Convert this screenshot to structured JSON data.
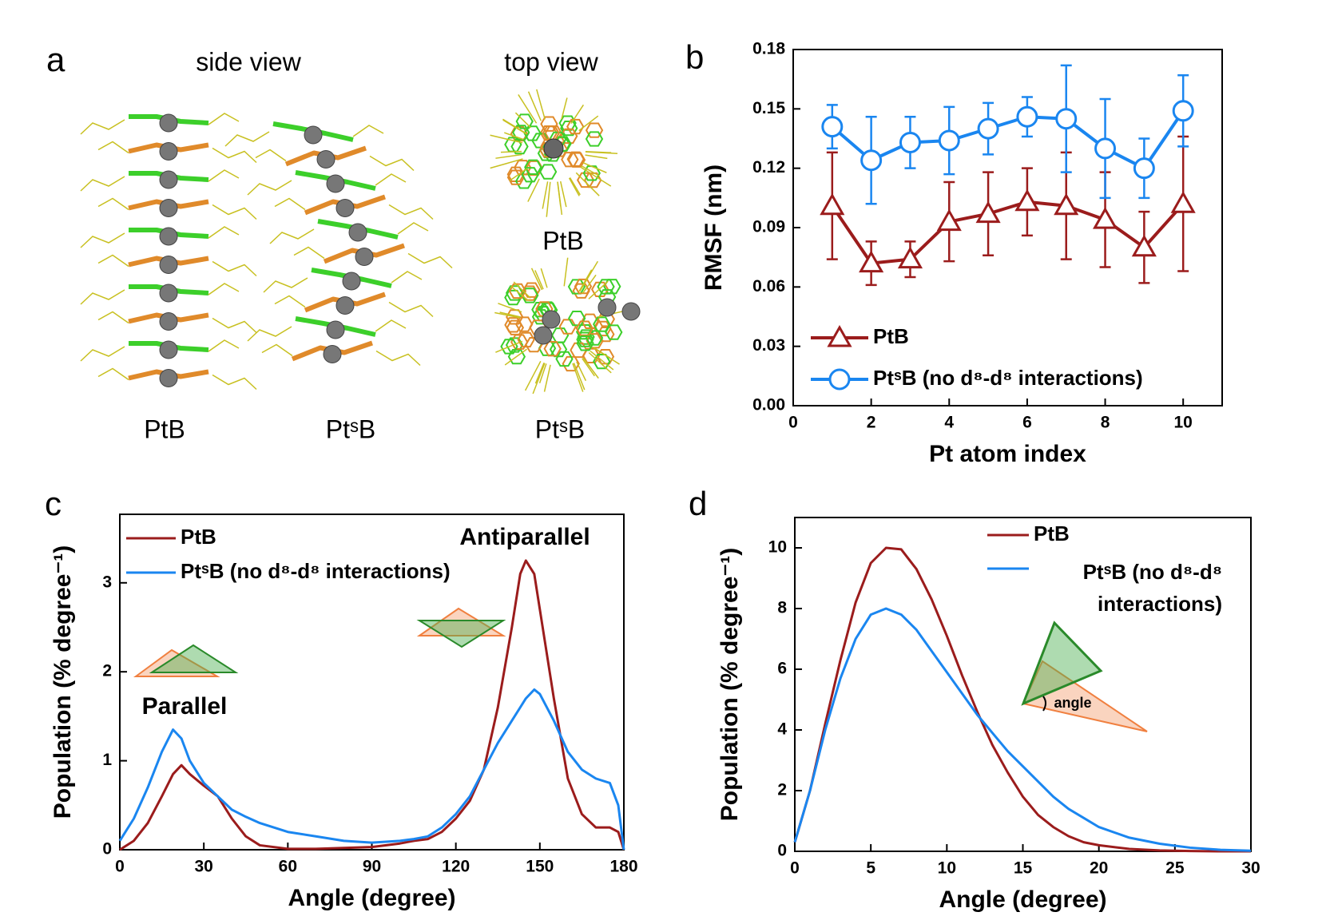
{
  "panel_a": {
    "panel_label": "a",
    "side_view": "side view",
    "top_view": "top view",
    "side_labels": [
      "PtB",
      "PtˢB"
    ],
    "top_labels": [
      "PtB",
      "PtˢB"
    ]
  },
  "chart_data": [
    {
      "type": "line",
      "panel_label": "b",
      "x_label": "Pt atom index",
      "y_label": "RMSF (nm)",
      "x": [
        1,
        2,
        3,
        4,
        5,
        6,
        7,
        8,
        9,
        10
      ],
      "series": [
        {
          "name": "PtB",
          "color": "#9b1c1c",
          "marker": "triangle",
          "values": [
            0.101,
            0.072,
            0.074,
            0.093,
            0.097,
            0.103,
            0.101,
            0.094,
            0.08,
            0.102
          ],
          "errors": [
            0.027,
            0.011,
            0.009,
            0.02,
            0.021,
            0.017,
            0.027,
            0.024,
            0.018,
            0.034
          ]
        },
        {
          "name": "PtˢB (no d⁸-d⁸ interactions)",
          "color": "#1a86f0",
          "marker": "circle",
          "values": [
            0.141,
            0.124,
            0.133,
            0.134,
            0.14,
            0.146,
            0.145,
            0.13,
            0.12,
            0.149
          ],
          "errors": [
            0.011,
            0.022,
            0.013,
            0.017,
            0.013,
            0.01,
            0.027,
            0.025,
            0.015,
            0.018
          ]
        }
      ],
      "xlim": [
        0,
        11
      ],
      "xticks": [
        0,
        2,
        4,
        6,
        8,
        10
      ],
      "ylim": [
        0,
        0.18
      ],
      "yticks": [
        {
          "value": 0,
          "label": "0.00"
        },
        0.03,
        0.06,
        0.09,
        0.12,
        0.15,
        0.18
      ],
      "legend": "lower left"
    },
    {
      "type": "line",
      "panel_label": "c",
      "x_label": "Angle (degree)",
      "y_label": "Population (% degree⁻¹)",
      "annotations": [
        "Parallel",
        "Antiparallel"
      ],
      "x": [
        0,
        5,
        10,
        15,
        19,
        22,
        25,
        30,
        35,
        40,
        45,
        50,
        60,
        70,
        80,
        90,
        100,
        105,
        110,
        115,
        120,
        125,
        130,
        135,
        140,
        143,
        145,
        148,
        150,
        155,
        160,
        165,
        170,
        175,
        178,
        180
      ],
      "series": [
        {
          "name": "PtB",
          "color": "#9b1c1c",
          "values": [
            0,
            0.1,
            0.3,
            0.6,
            0.85,
            0.95,
            0.85,
            0.72,
            0.6,
            0.35,
            0.15,
            0.05,
            0.01,
            0.01,
            0.02,
            0.03,
            0.07,
            0.1,
            0.12,
            0.2,
            0.35,
            0.55,
            0.9,
            1.6,
            2.5,
            3.1,
            3.25,
            3.1,
            2.7,
            1.7,
            0.8,
            0.4,
            0.25,
            0.25,
            0.2,
            0
          ]
        },
        {
          "name": "PtˢB (no d⁸-d⁸ interactions)",
          "color": "#1a86f0",
          "values": [
            0.1,
            0.35,
            0.7,
            1.1,
            1.35,
            1.25,
            1.0,
            0.75,
            0.6,
            0.45,
            0.37,
            0.3,
            0.2,
            0.15,
            0.1,
            0.08,
            0.1,
            0.12,
            0.15,
            0.25,
            0.4,
            0.6,
            0.9,
            1.2,
            1.45,
            1.6,
            1.7,
            1.8,
            1.75,
            1.45,
            1.1,
            0.9,
            0.8,
            0.75,
            0.5,
            0
          ]
        }
      ],
      "xlim": [
        0,
        180
      ],
      "xticks": [
        0,
        30,
        60,
        90,
        120,
        150,
        180
      ],
      "ylim": [
        0,
        3.77
      ],
      "yticks": [
        0,
        1,
        2,
        3
      ],
      "legend": "upper left"
    },
    {
      "type": "line",
      "panel_label": "d",
      "x_label": "Angle (degree)",
      "y_label": "Population (% degree⁻¹)",
      "annotations": [
        "angle"
      ],
      "x": [
        0,
        1,
        2,
        3,
        4,
        5,
        6,
        7,
        8,
        9,
        10,
        11,
        12,
        13,
        14,
        15,
        16,
        17,
        18,
        19,
        20,
        22,
        24,
        26,
        28,
        30
      ],
      "series": [
        {
          "name": "PtB",
          "color": "#9b1c1c",
          "values": [
            0.3,
            2,
            4.2,
            6.3,
            8.2,
            9.5,
            10,
            9.95,
            9.3,
            8.3,
            7.1,
            5.8,
            4.6,
            3.5,
            2.6,
            1.8,
            1.2,
            0.8,
            0.5,
            0.3,
            0.2,
            0.08,
            0.03,
            0.01,
            0,
            0
          ]
        },
        {
          "name": "PtˢB (no d⁸-d⁸ interactions)",
          "color": "#1a86f0",
          "values": [
            0.3,
            2,
            4,
            5.7,
            7,
            7.8,
            8,
            7.8,
            7.3,
            6.6,
            5.9,
            5.2,
            4.5,
            3.9,
            3.3,
            2.8,
            2.3,
            1.8,
            1.4,
            1.1,
            0.8,
            0.45,
            0.25,
            0.12,
            0.05,
            0.02
          ]
        }
      ],
      "xlim": [
        0,
        30
      ],
      "xticks": [
        0,
        5,
        10,
        15,
        20,
        25,
        30
      ],
      "ylim": [
        0,
        11.0
      ],
      "yticks": [
        0,
        2,
        4,
        6,
        8,
        10
      ],
      "legend": "upper right"
    }
  ]
}
